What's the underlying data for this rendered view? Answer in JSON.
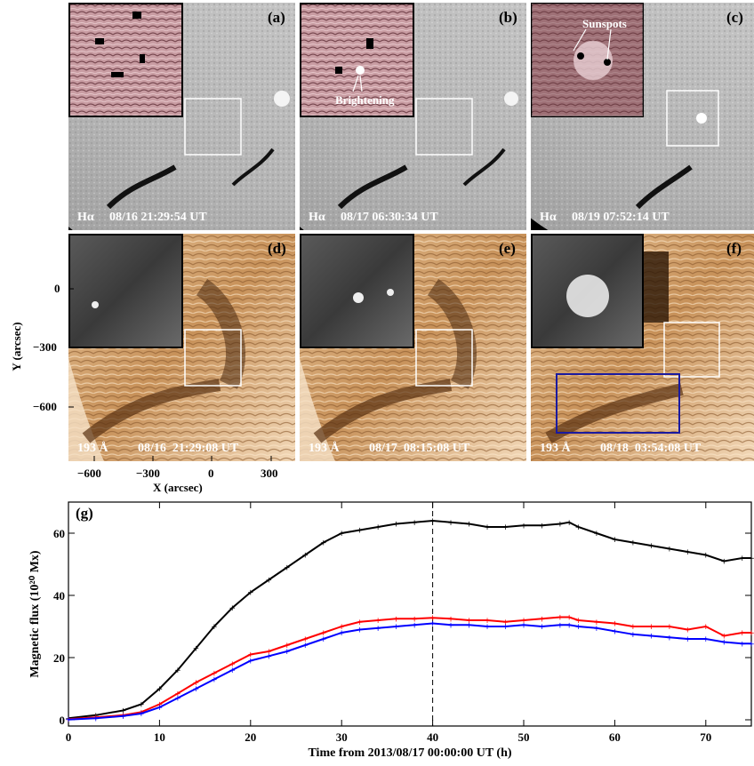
{
  "panels": {
    "a": {
      "letter": "(a)",
      "band": "Hα",
      "time": "08/16 21:29:54 UT"
    },
    "b": {
      "letter": "(b)",
      "band": "Hα",
      "time": "08/17 06:30:34 UT",
      "annotation": "Brightening"
    },
    "c": {
      "letter": "(c)",
      "band": "Hα",
      "time": "08/19 07:52:14 UT",
      "annotation": "Sunspots"
    },
    "d": {
      "letter": "(d)",
      "band": "193 Å",
      "time": "08/16  21:29:08 UT"
    },
    "e": {
      "letter": "(e)",
      "band": "193 Å",
      "time": "08/17  08:15:08 UT"
    },
    "f": {
      "letter": "(f)",
      "band": "193 Å",
      "time": "08/18  03:54:08 UT"
    }
  },
  "image_axes": {
    "xlabel": "X (arcsec)",
    "ylabel": "Y (arcsec)",
    "xticks": [
      "−600",
      "−300",
      "0",
      "300"
    ],
    "yticks": [
      "0",
      "−300",
      "−600"
    ]
  },
  "chart_data": {
    "type": "line",
    "panel_label": "(g)",
    "xlabel": "Time from 2013/08/17 00:00:00 UT (h)",
    "ylabel": "Magnetic flux (10²⁰ Mx)",
    "xlim": [
      0,
      75
    ],
    "ylim": [
      -2,
      70
    ],
    "xticks": [
      0,
      10,
      20,
      30,
      40,
      50,
      60,
      70
    ],
    "yticks": [
      0,
      20,
      40,
      60
    ],
    "vline_x": 40,
    "grid": false,
    "series": [
      {
        "color": "#000000",
        "x": [
          0,
          3,
          6,
          8,
          10,
          12,
          14,
          16,
          18,
          20,
          22,
          24,
          26,
          28,
          30,
          32,
          34,
          36,
          38,
          40,
          42,
          44,
          46,
          48,
          50,
          52,
          54,
          55,
          56,
          58,
          60,
          62,
          64,
          66,
          68,
          70,
          72,
          74,
          75
        ],
        "values": [
          0.5,
          1.5,
          3,
          5,
          10,
          16,
          23,
          30,
          36,
          41,
          45,
          49,
          53,
          57,
          60,
          61,
          62,
          63,
          63.5,
          64,
          63.5,
          63,
          62,
          62,
          62.5,
          62.5,
          63,
          63.5,
          62,
          60,
          58,
          57,
          56,
          55,
          54,
          53,
          51,
          52,
          52
        ]
      },
      {
        "color": "#ff0000",
        "x": [
          0,
          3,
          6,
          8,
          10,
          12,
          14,
          16,
          18,
          20,
          22,
          24,
          26,
          28,
          30,
          32,
          34,
          36,
          38,
          40,
          42,
          44,
          46,
          48,
          50,
          52,
          54,
          55,
          56,
          58,
          60,
          62,
          64,
          66,
          68,
          70,
          72,
          74,
          75
        ],
        "values": [
          0.2,
          0.8,
          1.5,
          2.5,
          5,
          8.5,
          12,
          15,
          18,
          21,
          22,
          24,
          26,
          28,
          30,
          31.5,
          32,
          32.5,
          32.5,
          32.8,
          32.5,
          32,
          32,
          31.5,
          32,
          32.5,
          33,
          33,
          32,
          31.5,
          31,
          30,
          30,
          30,
          29,
          30,
          27,
          28,
          28
        ]
      },
      {
        "color": "#0000ff",
        "x": [
          0,
          3,
          6,
          8,
          10,
          12,
          14,
          16,
          18,
          20,
          22,
          24,
          26,
          28,
          30,
          32,
          34,
          36,
          38,
          40,
          42,
          44,
          46,
          48,
          50,
          52,
          54,
          55,
          56,
          58,
          60,
          62,
          64,
          66,
          68,
          70,
          72,
          74,
          75
        ],
        "values": [
          0.1,
          0.5,
          1.2,
          2,
          4,
          7,
          10,
          13,
          16,
          19,
          20.5,
          22,
          24,
          26,
          28,
          29,
          29.5,
          30,
          30.5,
          31,
          30.5,
          30.5,
          30,
          30,
          30.5,
          30,
          30.5,
          30.5,
          30,
          29.5,
          28.5,
          27.5,
          27,
          26.5,
          26,
          26,
          25,
          24.5,
          24.5
        ]
      }
    ]
  }
}
